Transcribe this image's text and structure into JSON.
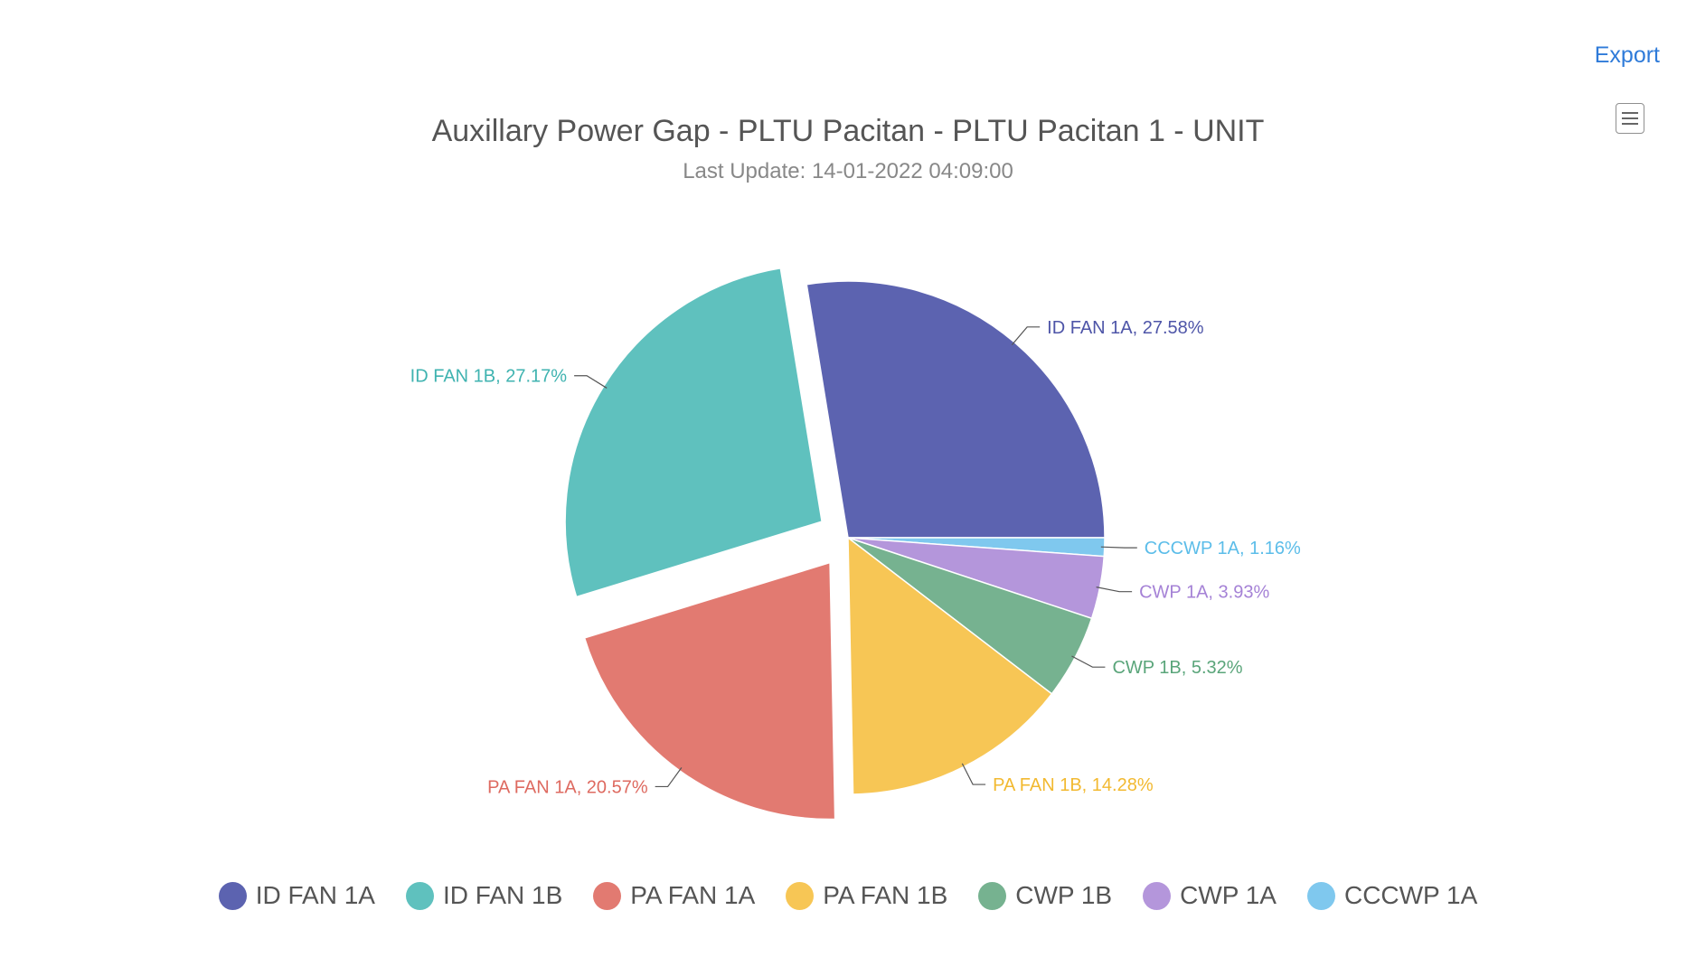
{
  "toolbar": {
    "export_label": "Export",
    "menu_icon": "hamburger-menu-icon"
  },
  "chart_data": {
    "type": "pie",
    "title": "Auxillary Power Gap - PLTU Pacitan - PLTU Pacitan 1 - UNIT",
    "subtitle": "Last Update: 14-01-2022 04:09:00",
    "legend_position": "bottom",
    "slices": [
      {
        "name": "ID FAN 1A",
        "value": 27.58,
        "label": "ID FAN 1A, 27.58%",
        "color": "#5c63b0",
        "exploded": false
      },
      {
        "name": "CCCWP 1A",
        "value": 1.16,
        "label": "CCCWP 1A, 1.16%",
        "color": "#7fc8ee",
        "exploded": false
      },
      {
        "name": "CWP 1A",
        "value": 3.93,
        "label": "CWP 1A, 3.93%",
        "color": "#b496db",
        "exploded": false
      },
      {
        "name": "CWP 1B",
        "value": 5.32,
        "label": "CWP 1B, 5.32%",
        "color": "#76b290",
        "exploded": false
      },
      {
        "name": "PA FAN 1B",
        "value": 14.28,
        "label": "PA FAN 1B, 14.28%",
        "color": "#f7c655",
        "exploded": false
      },
      {
        "name": "PA FAN 1A",
        "value": 20.57,
        "label": "PA FAN 1A, 20.57%",
        "color": "#e27a71",
        "exploded": true
      },
      {
        "name": "ID FAN 1B",
        "value": 27.17,
        "label": "ID FAN 1B, 27.17%",
        "color": "#5fc1be",
        "exploded": true
      }
    ],
    "legend": [
      {
        "name": "ID FAN 1A",
        "color": "#5c63b0"
      },
      {
        "name": "ID FAN 1B",
        "color": "#5fc1be"
      },
      {
        "name": "PA FAN 1A",
        "color": "#e27a71"
      },
      {
        "name": "PA FAN 1B",
        "color": "#f7c655"
      },
      {
        "name": "CWP 1B",
        "color": "#76b290"
      },
      {
        "name": "CWP 1A",
        "color": "#b496db"
      },
      {
        "name": "CCCWP 1A",
        "color": "#7fc8ee"
      }
    ],
    "label_colors": {
      "ID FAN 1A": "#4e55a8",
      "ID FAN 1B": "#3fb3b0",
      "PA FAN 1A": "#de6a60",
      "PA FAN 1B": "#f2b930",
      "CWP 1B": "#5aa57a",
      "CWP 1A": "#a582d6",
      "CCCWP 1A": "#5cbde9"
    }
  }
}
